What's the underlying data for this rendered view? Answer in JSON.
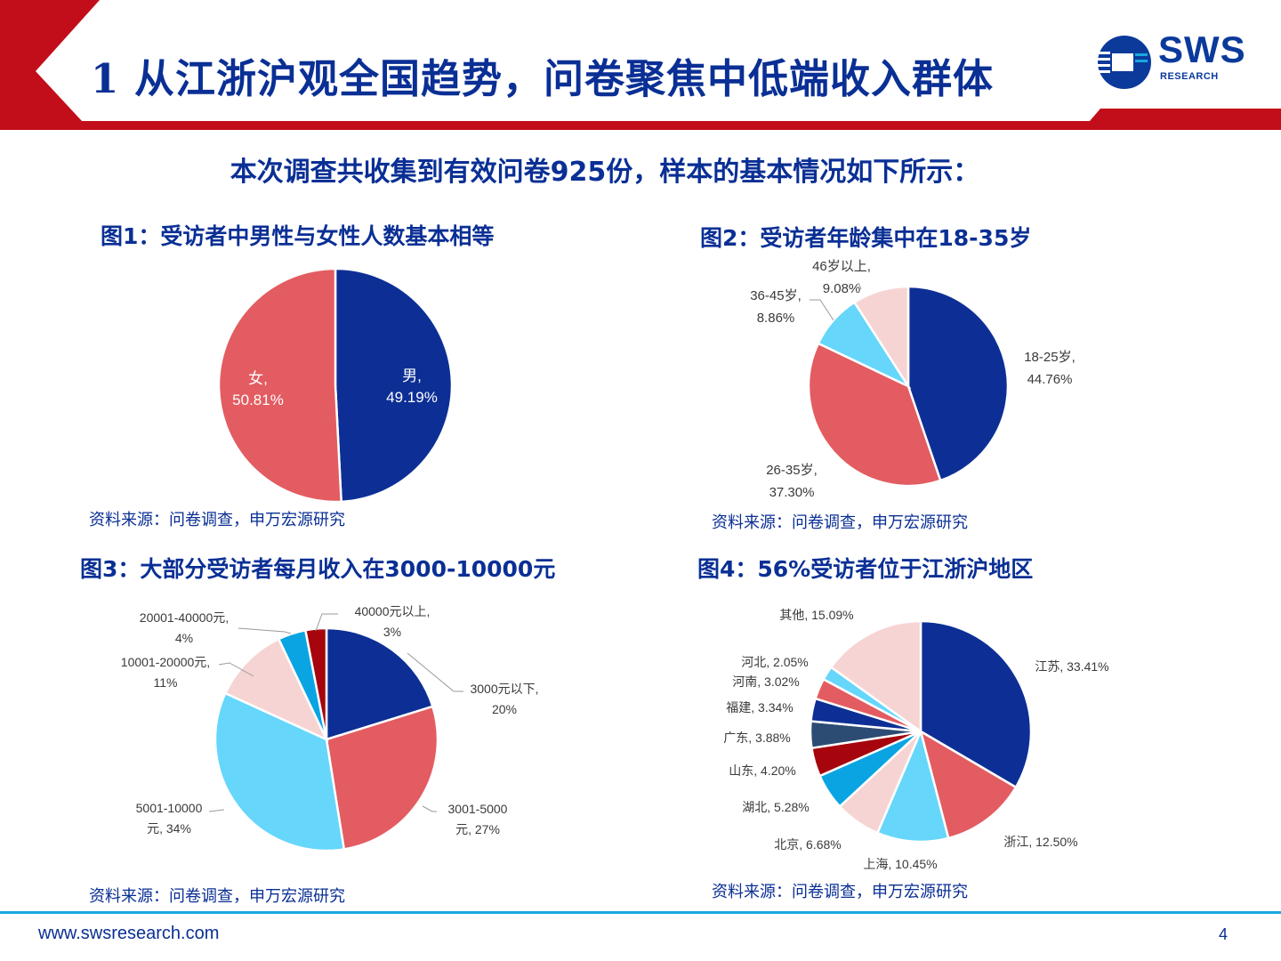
{
  "header": {
    "title": "1 从江浙沪观全国趋势，问卷聚焦中低端收入群体",
    "logo_text": "SWS",
    "logo_sub": "RESEARCH"
  },
  "subtitle": "本次调查共收集到有效问卷925份，样本的基本情况如下所示：",
  "footer": {
    "url": "www.swsresearch.com",
    "page": "4"
  },
  "colors": {
    "brand_red": "#c20e1a",
    "brand_blue": "#0a2f95",
    "footer_line": "#1aa7df"
  },
  "chart_data": [
    {
      "type": "pie",
      "title": "图1：受访者中男性与女性人数基本相等",
      "source": "资料来源：问卷调查，申万宏源研究",
      "slices": [
        {
          "name": "男",
          "value": 49.19,
          "label": [
            "男,",
            "49.19%"
          ],
          "color": "#0d2f95"
        },
        {
          "name": "女",
          "value": 50.81,
          "label": [
            "女,",
            "50.81%"
          ],
          "color": "#e35c61"
        }
      ]
    },
    {
      "type": "pie",
      "title": "图2：受访者年龄集中在18-35岁",
      "source": "资料来源：问卷调查，申万宏源研究",
      "slices": [
        {
          "name": "18-25岁",
          "value": 44.76,
          "label": [
            "18-25岁,",
            "44.76%"
          ],
          "color": "#0d2f95"
        },
        {
          "name": "26-35岁",
          "value": 37.3,
          "label": [
            "26-35岁,",
            "37.30%"
          ],
          "color": "#e35c61"
        },
        {
          "name": "36-45岁",
          "value": 8.86,
          "label": [
            "36-45岁,",
            "8.86%"
          ],
          "color": "#66d6fb"
        },
        {
          "name": "46岁以上",
          "value": 9.08,
          "label": [
            "46岁以上,",
            "9.08%"
          ],
          "color": "#f7d4d4"
        }
      ]
    },
    {
      "type": "pie",
      "title": "图3：大部分受访者每月收入在3000-10000元",
      "source": "资料来源：问卷调查，申万宏源研究",
      "slices": [
        {
          "name": "3000元以下",
          "value": 20,
          "label": [
            "3000元以下,",
            "20%"
          ],
          "color": "#0d2f95"
        },
        {
          "name": "3001-5000元",
          "value": 27,
          "label": [
            "3001-5000",
            "元, 27%"
          ],
          "color": "#e35c61"
        },
        {
          "name": "5001-10000元",
          "value": 34,
          "label": [
            "5001-10000",
            "元, 34%"
          ],
          "color": "#66d6fb"
        },
        {
          "name": "10001-20000元",
          "value": 11,
          "label": [
            "10001-20000元,",
            "11%"
          ],
          "color": "#f7d4d4"
        },
        {
          "name": "20001-40000元",
          "value": 4,
          "label": [
            "20001-40000元,",
            "4%"
          ],
          "color": "#0ba4e2"
        },
        {
          "name": "40000元以上",
          "value": 3,
          "label": [
            "40000元以上,",
            "3%"
          ],
          "color": "#a6050e"
        }
      ]
    },
    {
      "type": "pie",
      "title": "图4：56%受访者位于江浙沪地区",
      "source": "资料来源：问卷调查，申万宏源研究",
      "slices": [
        {
          "name": "江苏",
          "value": 33.41,
          "label": [
            "江苏, 33.41%"
          ],
          "color": "#0d2f95"
        },
        {
          "name": "浙江",
          "value": 12.5,
          "label": [
            "浙江, 12.50%"
          ],
          "color": "#e35c61"
        },
        {
          "name": "上海",
          "value": 10.45,
          "label": [
            "上海, 10.45%"
          ],
          "color": "#66d6fb"
        },
        {
          "name": "北京",
          "value": 6.68,
          "label": [
            "北京, 6.68%"
          ],
          "color": "#f7d4d4"
        },
        {
          "name": "湖北",
          "value": 5.28,
          "label": [
            "湖北, 5.28%"
          ],
          "color": "#0ba4e2"
        },
        {
          "name": "山东",
          "value": 4.2,
          "label": [
            "山东, 4.20%"
          ],
          "color": "#a6050e"
        },
        {
          "name": "广东",
          "value": 3.88,
          "label": [
            "广东, 3.88%"
          ],
          "color": "#2c4c73"
        },
        {
          "name": "福建",
          "value": 3.34,
          "label": [
            "福建, 3.34%"
          ],
          "color": "#0d2f95"
        },
        {
          "name": "河南",
          "value": 3.02,
          "label": [
            "河南, 3.02%"
          ],
          "color": "#e35c61"
        },
        {
          "name": "河北",
          "value": 2.05,
          "label": [
            "河北, 2.05%"
          ],
          "color": "#66d6fb"
        },
        {
          "name": "其他",
          "value": 15.09,
          "label": [
            "其他, 15.09%"
          ],
          "color": "#f7d4d4"
        }
      ]
    }
  ]
}
